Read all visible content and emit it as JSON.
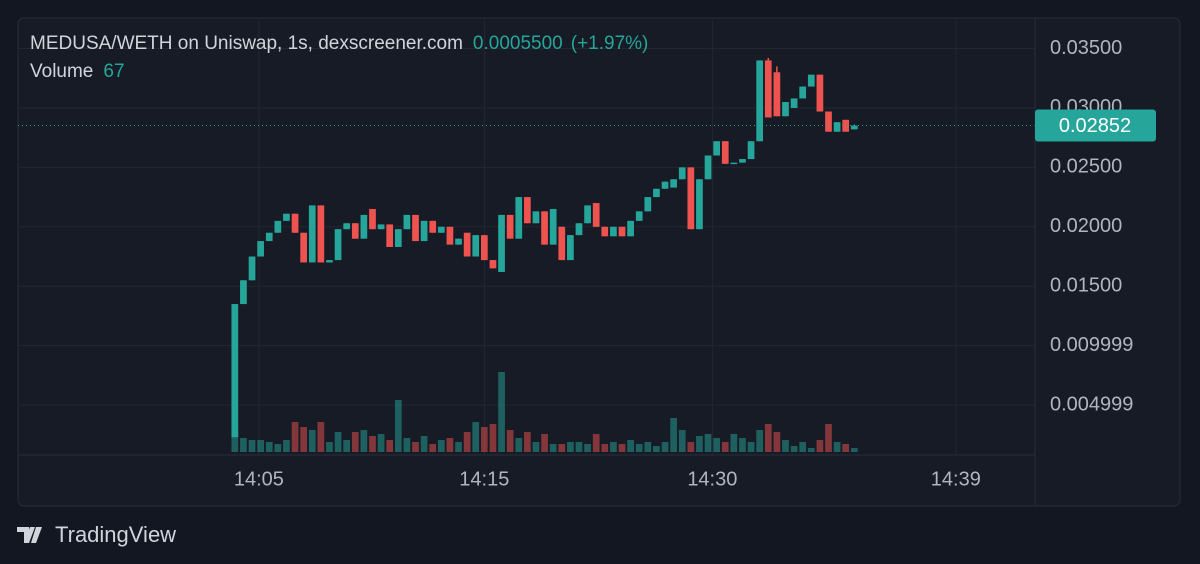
{
  "chart_data": {
    "type": "candlestick",
    "title": "MEDUSA/WETH on Uniswap, 1s, dexscreener.com",
    "header_price": "0.0005500",
    "header_change": "(+1.97%)",
    "volume_label": "Volume",
    "categories": [
      null,
      null,
      null,
      null,
      null,
      null,
      null,
      null,
      null,
      null,
      null,
      null,
      null,
      null,
      null,
      null,
      null,
      null,
      null,
      null,
      null,
      null,
      null,
      null,
      null,
      null,
      null,
      null,
      null,
      null,
      null,
      null,
      null,
      null,
      null,
      null,
      null,
      null,
      null,
      null,
      null,
      null,
      null,
      null,
      null,
      null,
      null,
      null,
      null,
      null,
      null,
      null,
      null,
      null,
      null,
      null,
      null,
      null,
      null,
      null,
      null,
      null,
      null,
      null,
      null,
      null,
      null,
      null,
      null,
      null,
      null,
      null,
      null
    ],
    "open": [
      0.0023,
      0.0135,
      0.0155,
      0.0175,
      0.0188,
      0.0195,
      0.0205,
      0.0211,
      0.0195,
      0.017,
      0.0218,
      0.017,
      0.0172,
      0.0198,
      0.0203,
      0.019,
      0.0215,
      0.0198,
      0.0202,
      0.0183,
      0.0198,
      0.021,
      0.0188,
      0.0205,
      0.0195,
      0.02,
      0.0185,
      0.0195,
      0.0175,
      0.0193,
      0.0172,
      0.0162,
      0.021,
      0.019,
      0.0225,
      0.0203,
      0.0213,
      0.0185,
      0.02,
      0.0172,
      0.0193,
      0.0203,
      0.022,
      0.02,
      0.0192,
      0.02,
      0.0192,
      0.0205,
      0.0213,
      0.0225,
      0.0232,
      0.0233,
      0.024,
      0.025,
      0.0198,
      0.024,
      0.026,
      0.0272,
      0.0253,
      0.0254,
      0.0257,
      0.0272,
      0.034,
      0.033,
      0.0293,
      0.03,
      0.0308,
      0.0318,
      0.0328,
      0.0297,
      0.028,
      0.029,
      0.0282
    ],
    "high": [
      0.0135,
      0.0155,
      0.0175,
      0.0188,
      0.0195,
      0.0205,
      0.0211,
      0.0211,
      0.0195,
      0.0218,
      0.0218,
      0.0172,
      0.0198,
      0.0203,
      0.0203,
      0.021,
      0.0215,
      0.0202,
      0.0202,
      0.0198,
      0.021,
      0.021,
      0.0205,
      0.0205,
      0.02,
      0.02,
      0.019,
      0.0195,
      0.0193,
      0.0193,
      0.0172,
      0.021,
      0.021,
      0.0225,
      0.0225,
      0.0213,
      0.0213,
      0.0215,
      0.02,
      0.0193,
      0.0203,
      0.0218,
      0.022,
      0.02,
      0.02,
      0.02,
      0.0205,
      0.0213,
      0.0225,
      0.0232,
      0.0238,
      0.024,
      0.025,
      0.025,
      0.024,
      0.026,
      0.0272,
      0.0272,
      0.0254,
      0.0257,
      0.0272,
      0.034,
      0.0342,
      0.0335,
      0.0305,
      0.0308,
      0.0318,
      0.0328,
      0.0328,
      0.0297,
      0.0288,
      0.029,
      0.0286
    ],
    "low": [
      0.0023,
      0.0135,
      0.0155,
      0.0175,
      0.0188,
      0.0195,
      0.0205,
      0.0195,
      0.017,
      0.017,
      0.017,
      0.017,
      0.0172,
      0.0198,
      0.019,
      0.019,
      0.0198,
      0.0198,
      0.0183,
      0.0183,
      0.0198,
      0.0188,
      0.0188,
      0.0195,
      0.0195,
      0.0185,
      0.0185,
      0.0175,
      0.0175,
      0.0172,
      0.0165,
      0.0162,
      0.019,
      0.019,
      0.0203,
      0.0203,
      0.0185,
      0.0185,
      0.0172,
      0.0172,
      0.0193,
      0.0203,
      0.02,
      0.0192,
      0.0192,
      0.0192,
      0.0192,
      0.0205,
      0.0213,
      0.0225,
      0.0232,
      0.0233,
      0.024,
      0.0198,
      0.0198,
      0.024,
      0.026,
      0.0253,
      0.0253,
      0.0254,
      0.0257,
      0.0272,
      0.0292,
      0.0293,
      0.0293,
      0.03,
      0.0308,
      0.0318,
      0.0297,
      0.028,
      0.028,
      0.028,
      0.0282
    ],
    "close": [
      0.0135,
      0.0155,
      0.0175,
      0.0188,
      0.0195,
      0.0205,
      0.0211,
      0.0195,
      0.017,
      0.0218,
      0.017,
      0.0172,
      0.0198,
      0.0203,
      0.019,
      0.021,
      0.0198,
      0.0202,
      0.0183,
      0.0198,
      0.021,
      0.0188,
      0.0205,
      0.0195,
      0.02,
      0.0185,
      0.019,
      0.0175,
      0.0193,
      0.0172,
      0.0165,
      0.021,
      0.019,
      0.0225,
      0.0203,
      0.0213,
      0.0185,
      0.0215,
      0.0172,
      0.0193,
      0.0203,
      0.0218,
      0.02,
      0.0192,
      0.02,
      0.0192,
      0.0205,
      0.0213,
      0.0225,
      0.0232,
      0.0238,
      0.024,
      0.025,
      0.0198,
      0.024,
      0.026,
      0.0272,
      0.0253,
      0.0254,
      0.0257,
      0.0272,
      0.034,
      0.0292,
      0.0293,
      0.0305,
      0.0308,
      0.0318,
      0.0328,
      0.0297,
      0.028,
      0.0288,
      0.028,
      0.02852
    ],
    "volume": {
      "values": [
        374,
        238,
        204,
        204,
        170,
        136,
        204,
        510,
        425,
        374,
        510,
        170,
        340,
        204,
        340,
        374,
        272,
        306,
        204,
        884,
        238,
        170,
        272,
        136,
        204,
        238,
        170,
        340,
        510,
        425,
        476,
        1360,
        374,
        238,
        340,
        170,
        306,
        136,
        136,
        170,
        170,
        136,
        306,
        136,
        170,
        136,
        204,
        136,
        170,
        102,
        170,
        578,
        374,
        170,
        272,
        306,
        238,
        170,
        306,
        238,
        170,
        374,
        476,
        340,
        204,
        102,
        170,
        68,
        204,
        476,
        170,
        136,
        67
      ]
    },
    "up_color": "#26a69a",
    "down_color": "#ef5350",
    "ylim": [
      0.0008,
      0.0374
    ],
    "yticks": [
      0.004999,
      0.009999,
      {
        "value": 0.015,
        "label": "0.01500"
      },
      {
        "value": 0.02,
        "label": "0.02000"
      },
      {
        "value": 0.025,
        "label": "0.02500"
      },
      {
        "value": 0.03,
        "label": "0.03000"
      },
      {
        "value": 0.035,
        "label": "0.03500"
      }
    ],
    "xlim": [
      -25.2,
      93
    ],
    "xticks": [
      {
        "value": 2.8,
        "label": "14:05"
      },
      {
        "value": 29,
        "label": "14:15"
      },
      {
        "value": 55.5,
        "label": "14:30"
      },
      {
        "value": 83.8,
        "label": "14:39"
      }
    ],
    "grid": true
  },
  "branding": "TradingView"
}
